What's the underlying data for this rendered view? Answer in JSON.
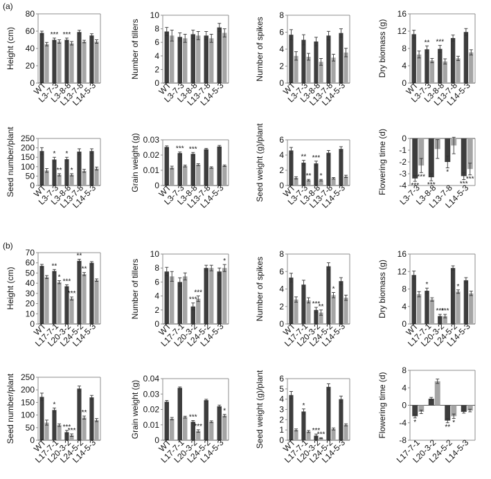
{
  "panel_labels": {
    "a": "(a)",
    "b": "(b)"
  },
  "colors": {
    "dark": "#3d3d3d",
    "light": "#a5a5a5",
    "axis": "#8c8c8c"
  },
  "chart_data": [
    {
      "id": "a1",
      "type": "bar",
      "categories": [
        "WT",
        "L3-7-3",
        "L3-8-8",
        "L13-7-8",
        "L14-5-3"
      ],
      "ylabel": "Height (cm)",
      "ylim": [
        0,
        80
      ],
      "yticks": [
        "0",
        "20",
        "40",
        "60",
        "80"
      ],
      "series": [
        {
          "values": [
            58,
            50,
            50,
            59,
            55
          ]
        },
        {
          "values": [
            45,
            48,
            46,
            48,
            48
          ]
        }
      ],
      "errors": [
        [
          2,
          2,
          2,
          2,
          2
        ],
        [
          2,
          2,
          2,
          1.5,
          2
        ]
      ],
      "annotations": [
        {
          "cat": 1,
          "series": 0,
          "text": "***"
        },
        {
          "cat": 2,
          "series": 0,
          "text": "***"
        }
      ]
    },
    {
      "id": "a2",
      "type": "bar",
      "categories": [
        "WT",
        "L3-7-3",
        "L3-8-8",
        "L13-7-8",
        "L14-5-3"
      ],
      "ylabel": "Number of tillers",
      "ylim": [
        0,
        10
      ],
      "yticks": [
        "0",
        "2",
        "4",
        "6",
        "8",
        "10"
      ],
      "series": [
        {
          "values": [
            7.6,
            6.8,
            7.2,
            7,
            8.2
          ]
        },
        {
          "values": [
            7,
            6.6,
            7,
            6.6,
            7.4
          ]
        }
      ],
      "errors": [
        [
          0.6,
          0.6,
          0.6,
          0.6,
          0.6
        ],
        [
          0.8,
          0.6,
          0.6,
          0.6,
          0.6
        ]
      ],
      "annotations": []
    },
    {
      "id": "a3",
      "type": "bar",
      "categories": [
        "WT",
        "L3-7-3",
        "L3-8-8",
        "L13-7-8",
        "L14-5-3"
      ],
      "ylabel": "Number of spikes",
      "ylim": [
        0,
        8
      ],
      "yticks": [
        "0",
        "2",
        "4",
        "6",
        "8"
      ],
      "series": [
        {
          "values": [
            5.7,
            5.1,
            4.9,
            5.6,
            5.9
          ]
        },
        {
          "values": [
            3.2,
            3.1,
            2.5,
            3,
            3.6
          ]
        }
      ],
      "errors": [
        [
          0.6,
          0.6,
          0.5,
          0.5,
          0.5
        ],
        [
          0.5,
          0.4,
          0.4,
          0.4,
          0.5
        ]
      ],
      "annotations": []
    },
    {
      "id": "a4",
      "type": "bar",
      "categories": [
        "WT",
        "L3-7-3",
        "L3-8-8",
        "L13-7-8",
        "L14-5-3"
      ],
      "ylabel": "Dry biomass (g)",
      "ylim": [
        0,
        16
      ],
      "yticks": [
        "0",
        "4",
        "8",
        "12",
        "16"
      ],
      "series": [
        {
          "values": [
            11.3,
            7.8,
            7.9,
            10.4,
            11.8
          ]
        },
        {
          "values": [
            6.6,
            5.2,
            5,
            5.7,
            7.1
          ]
        }
      ],
      "errors": [
        [
          0.9,
          0.8,
          0.8,
          0.7,
          0.8
        ],
        [
          0.8,
          0.5,
          0.6,
          0.5,
          0.6
        ]
      ],
      "annotations": [
        {
          "cat": 1,
          "series": 0,
          "text": "**"
        },
        {
          "cat": 2,
          "series": 0,
          "text": "***"
        }
      ]
    },
    {
      "id": "a5",
      "type": "bar",
      "categories": [
        "WT",
        "L3-7-3",
        "L3-8-8",
        "L13-7-8",
        "L14-5-3"
      ],
      "ylabel": "Seed number/plant",
      "ylim": [
        0,
        250
      ],
      "yticks": [
        "0",
        "50",
        "100",
        "150",
        "200",
        "250"
      ],
      "series": [
        {
          "values": [
            183,
            138,
            140,
            180,
            183
          ]
        },
        {
          "values": [
            80,
            57,
            57,
            78,
            90
          ]
        }
      ],
      "errors": [
        [
          18,
          12,
          10,
          15,
          12
        ],
        [
          10,
          6,
          6,
          8,
          8
        ]
      ],
      "annotations": [
        {
          "cat": 1,
          "series": 0,
          "text": "*"
        },
        {
          "cat": 2,
          "series": 0,
          "text": "*"
        },
        {
          "cat": 1,
          "series": 1,
          "text": "**"
        },
        {
          "cat": 2,
          "series": 1,
          "text": "*"
        }
      ]
    },
    {
      "id": "a6",
      "type": "bar",
      "categories": [
        "WT",
        "L3-7-3",
        "L3-8-8",
        "L13-7-8",
        "L14-5-3"
      ],
      "ylabel": "Grain weight (g)",
      "ylim": [
        0,
        0.03
      ],
      "yticks": [
        "0",
        "0.01",
        "0.02",
        "0.03"
      ],
      "series": [
        {
          "values": [
            0.0253,
            0.0213,
            0.0208,
            0.0238,
            0.0256
          ]
        },
        {
          "values": [
            0.0118,
            0.0128,
            0.0137,
            0.0118,
            0.013
          ]
        }
      ],
      "errors": [
        [
          0.0007,
          0.0007,
          0.0009,
          0.0006,
          0.0007
        ],
        [
          0.0009,
          0.0006,
          0.0006,
          0.0005,
          0.0005
        ]
      ],
      "annotations": [
        {
          "cat": 1,
          "series": 0,
          "text": "***"
        },
        {
          "cat": 2,
          "series": 0,
          "text": "***"
        }
      ]
    },
    {
      "id": "a7",
      "type": "bar",
      "categories": [
        "WT",
        "L3-7-3",
        "L3-8-8",
        "L13-7-8",
        "L14-5-3"
      ],
      "ylabel": "Seed weight (g)/plant",
      "ylim": [
        0,
        6
      ],
      "yticks": [
        "0",
        "2",
        "4",
        "6"
      ],
      "series": [
        {
          "values": [
            4.6,
            3,
            2.9,
            4.3,
            4.8
          ]
        },
        {
          "values": [
            1,
            0.7,
            0.7,
            0.95,
            1.2
          ]
        }
      ],
      "errors": [
        [
          0.4,
          0.3,
          0.3,
          0.3,
          0.3
        ],
        [
          0.15,
          0.1,
          0.1,
          0.1,
          0.15
        ]
      ],
      "annotations": [
        {
          "cat": 1,
          "series": 0,
          "text": "**"
        },
        {
          "cat": 2,
          "series": 0,
          "text": "***"
        },
        {
          "cat": 1,
          "series": 1,
          "text": "**"
        },
        {
          "cat": 2,
          "series": 1,
          "text": "*"
        }
      ]
    },
    {
      "id": "a8",
      "type": "bar",
      "categories": [
        "L3-7-3",
        "L3-8-8",
        "L13-7-8",
        "L14-5-3"
      ],
      "ylabel": "Flowering time (d)",
      "ylim": [
        -4,
        0
      ],
      "yticks": [
        "-4",
        "-3",
        "-2",
        "-1",
        "0"
      ],
      "xaxis_at_top": true,
      "series": [
        {
          "values": [
            -3.4,
            -3.3,
            -2,
            -3.2
          ]
        },
        {
          "values": [
            -2.3,
            -0.9,
            -0.6,
            -2.6
          ]
        }
      ],
      "errors": [
        [
          0.25,
          0.3,
          0.5,
          0.3
        ],
        [
          0.6,
          0.8,
          0.7,
          0.5
        ]
      ],
      "annotations": [
        {
          "cat": 0,
          "series": 0,
          "text": "***"
        },
        {
          "cat": 0,
          "series": 1,
          "text": "***"
        },
        {
          "cat": 1,
          "series": 0,
          "text": "***"
        },
        {
          "cat": 2,
          "series": 0,
          "text": "*"
        },
        {
          "cat": 3,
          "series": 0,
          "text": "***"
        },
        {
          "cat": 3,
          "series": 1,
          "text": "***"
        }
      ]
    },
    {
      "id": "b1",
      "type": "bar",
      "categories": [
        "WT",
        "L17-7-1",
        "L20-3-2",
        "L24-5-2",
        "L14-5-3"
      ],
      "ylabel": "Height (cm)",
      "ylim": [
        0,
        70
      ],
      "yticks": [
        "0",
        "10",
        "20",
        "30",
        "40",
        "50",
        "60",
        "70"
      ],
      "series": [
        {
          "values": [
            57,
            52,
            37,
            62,
            60
          ]
        },
        {
          "values": [
            46,
            41,
            25,
            49,
            43
          ]
        }
      ],
      "errors": [
        [
          1.5,
          1.5,
          1.5,
          1.5,
          1.2
        ],
        [
          1.5,
          1.5,
          1.5,
          1.5,
          1.2
        ]
      ],
      "annotations": [
        {
          "cat": 1,
          "series": 0,
          "text": "**"
        },
        {
          "cat": 1,
          "series": 1,
          "text": "*"
        },
        {
          "cat": 2,
          "series": 0,
          "text": "***"
        },
        {
          "cat": 2,
          "series": 1,
          "text": "***"
        },
        {
          "cat": 3,
          "series": 0,
          "text": "**"
        },
        {
          "cat": 3,
          "series": 1,
          "text": "**"
        }
      ]
    },
    {
      "id": "b2",
      "type": "bar",
      "categories": [
        "WT",
        "L17-7-1",
        "L20-3-2",
        "L24-5-2",
        "L14-5-3"
      ],
      "ylabel": "Number of tillers",
      "ylim": [
        0,
        10
      ],
      "yticks": [
        "0",
        "2",
        "4",
        "6",
        "8",
        "10"
      ],
      "series": [
        {
          "values": [
            7.5,
            6,
            2.5,
            8,
            7.5
          ]
        },
        {
          "values": [
            6.8,
            6.8,
            3.6,
            8,
            8
          ]
        }
      ],
      "errors": [
        [
          0.6,
          0.6,
          0.5,
          0.4,
          0.5
        ],
        [
          0.7,
          0.5,
          0.4,
          0.4,
          0.5
        ]
      ],
      "annotations": [
        {
          "cat": 2,
          "series": 0,
          "text": "***"
        },
        {
          "cat": 2,
          "series": 1,
          "text": "***"
        },
        {
          "cat": 4,
          "series": 1,
          "text": "*"
        }
      ]
    },
    {
      "id": "b3",
      "type": "bar",
      "categories": [
        "WT",
        "L17-7-1",
        "L20-3-2",
        "L24-5-2",
        "L14-5-3"
      ],
      "ylabel": "Number of spikes",
      "ylim": [
        0,
        8
      ],
      "yticks": [
        "0",
        "2",
        "4",
        "6",
        "8"
      ],
      "series": [
        {
          "values": [
            5.3,
            4.5,
            1.6,
            6.6,
            4.9
          ]
        },
        {
          "values": [
            2.8,
            2.7,
            1.3,
            3.3,
            3
          ]
        }
      ],
      "errors": [
        [
          0.5,
          0.5,
          0.3,
          0.4,
          0.4
        ],
        [
          0.3,
          0.3,
          0.3,
          0.3,
          0.3
        ]
      ],
      "annotations": [
        {
          "cat": 2,
          "series": 0,
          "text": "***"
        },
        {
          "cat": 2,
          "series": 1,
          "text": "**"
        },
        {
          "cat": 3,
          "series": 1,
          "text": "*"
        }
      ]
    },
    {
      "id": "b4",
      "type": "bar",
      "categories": [
        "WT",
        "L17-7-1",
        "L20-3-2",
        "L24-5-2",
        "L14-5-3"
      ],
      "ylabel": "Dry biomass (g)",
      "ylim": [
        0,
        16
      ],
      "yticks": [
        "0",
        "4",
        "8",
        "12",
        "16"
      ],
      "series": [
        {
          "values": [
            11.2,
            7.6,
            1.8,
            12.8,
            10
          ]
        },
        {
          "values": [
            6.8,
            5.6,
            1.8,
            7.4,
            7
          ]
        }
      ],
      "errors": [
        [
          0.9,
          0.6,
          0.4,
          0.5,
          0.6
        ],
        [
          0.6,
          0.4,
          0.4,
          0.4,
          0.5
        ]
      ],
      "annotations": [
        {
          "cat": 1,
          "series": 0,
          "text": "*"
        },
        {
          "cat": 2,
          "series": 0,
          "text": "***"
        },
        {
          "cat": 2,
          "series": 1,
          "text": "***"
        },
        {
          "cat": 3,
          "series": 1,
          "text": "*"
        }
      ]
    },
    {
      "id": "b5",
      "type": "bar",
      "categories": [
        "WT",
        "L17-7-1",
        "L20-3-2",
        "L24-5-2",
        "L14-5-3"
      ],
      "ylabel": "Seed number/plant",
      "ylim": [
        0,
        250
      ],
      "yticks": [
        "0",
        "50",
        "100",
        "150",
        "200",
        "250"
      ],
      "series": [
        {
          "values": [
            172,
            120,
            32,
            205,
            170
          ]
        },
        {
          "values": [
            70,
            60,
            20,
            90,
            80
          ]
        }
      ],
      "errors": [
        [
          15,
          8,
          7,
          10,
          8
        ],
        [
          10,
          5,
          5,
          6,
          6
        ]
      ],
      "annotations": [
        {
          "cat": 1,
          "series": 0,
          "text": "*"
        },
        {
          "cat": 2,
          "series": 0,
          "text": "***"
        },
        {
          "cat": 2,
          "series": 1,
          "text": "***"
        },
        {
          "cat": 3,
          "series": 1,
          "text": "**"
        }
      ]
    },
    {
      "id": "b6",
      "type": "bar",
      "categories": [
        "WT",
        "L17-7-1",
        "L20-3-2",
        "L24-5-2",
        "L14-5-3"
      ],
      "ylabel": "Grain weight (g)",
      "ylim": [
        0,
        0.04
      ],
      "yticks": [
        "0",
        "0.01",
        "0.02",
        "0.03",
        "0.04"
      ],
      "series": [
        {
          "values": [
            0.025,
            0.034,
            0.012,
            0.026,
            0.022
          ]
        },
        {
          "values": [
            0.014,
            0.015,
            0.006,
            0.012,
            0.016
          ]
        }
      ],
      "errors": [
        [
          0.0008,
          0.0006,
          0.0008,
          0.0006,
          0.0008
        ],
        [
          0.0008,
          0.0006,
          0.0008,
          0.0006,
          0.0008
        ]
      ],
      "annotations": [
        {
          "cat": 2,
          "series": 0,
          "text": "***"
        },
        {
          "cat": 2,
          "series": 1,
          "text": "***"
        },
        {
          "cat": 4,
          "series": 1,
          "text": "*"
        }
      ]
    },
    {
      "id": "b7",
      "type": "bar",
      "categories": [
        "WT",
        "L17-7-1",
        "L20-3-2",
        "L24-5-2",
        "L14-5-3"
      ],
      "ylabel": "Seed weight (g)/plant",
      "ylim": [
        0,
        6
      ],
      "yticks": [
        "0",
        "1",
        "2",
        "3",
        "4",
        "5",
        "6"
      ],
      "series": [
        {
          "values": [
            4.4,
            2.8,
            0.45,
            5.2,
            4
          ]
        },
        {
          "values": [
            1,
            0.85,
            0.2,
            1.1,
            1.5
          ]
        }
      ],
      "errors": [
        [
          0.35,
          0.25,
          0.15,
          0.3,
          0.3
        ],
        [
          0.1,
          0.1,
          0.05,
          0.1,
          0.1
        ]
      ],
      "annotations": [
        {
          "cat": 1,
          "series": 0,
          "text": "*"
        },
        {
          "cat": 2,
          "series": 0,
          "text": "***"
        },
        {
          "cat": 2,
          "series": 1,
          "text": "***"
        }
      ]
    },
    {
      "id": "b8",
      "type": "bar",
      "categories": [
        "L17-7-1",
        "L20-3-2",
        "L24-5-2",
        "L14-5-3"
      ],
      "ylabel": "Flowering time (d)",
      "ylim": [
        -8,
        8
      ],
      "yticks": [
        "-8",
        "-4",
        "0",
        "4",
        "8"
      ],
      "series": [
        {
          "values": [
            -2.5,
            1.5,
            -3.5,
            -1.5
          ]
        },
        {
          "values": [
            -1.5,
            5.5,
            -2.5,
            -1.2
          ]
        }
      ],
      "errors": [
        [
          0.4,
          0.3,
          0.5,
          0.3
        ],
        [
          0.4,
          0.5,
          0.5,
          0.3
        ]
      ],
      "annotations": [
        {
          "cat": 0,
          "series": 0,
          "text": "*"
        },
        {
          "cat": 2,
          "series": 0,
          "text": "**"
        },
        {
          "cat": 2,
          "series": 1,
          "text": "*"
        }
      ]
    }
  ]
}
